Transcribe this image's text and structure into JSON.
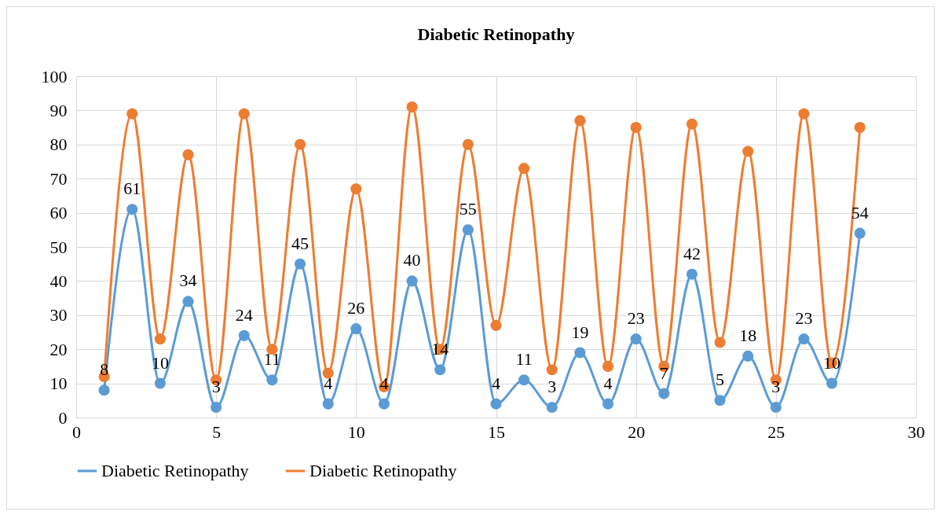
{
  "chart_data": {
    "type": "line",
    "title": "Diabetic Retinopathy",
    "x": [
      1,
      2,
      3,
      4,
      5,
      6,
      7,
      8,
      9,
      10,
      11,
      12,
      13,
      14,
      15,
      16,
      17,
      18,
      19,
      20,
      21,
      22,
      23,
      24,
      25,
      26,
      27,
      28
    ],
    "series": [
      {
        "name": "Diabetic Retinopathy",
        "color": "#5b9bd5",
        "values": [
          8,
          61,
          10,
          34,
          3,
          24,
          11,
          45,
          4,
          26,
          4,
          40,
          14,
          55,
          4,
          11,
          3,
          19,
          4,
          23,
          7,
          42,
          5,
          18,
          3,
          23,
          10,
          54
        ],
        "value_labels": [
          "8",
          "61",
          "10",
          "34",
          "3",
          "24",
          "11",
          "45",
          "4",
          "26",
          "4",
          "40",
          "14",
          "55",
          "4",
          "11",
          "3",
          "19",
          "4",
          "23",
          "7",
          "42",
          "5",
          "18",
          "3",
          "23",
          "10",
          "54"
        ]
      },
      {
        "name": "Diabetic Retinopathy",
        "color": "#ed7d31",
        "values": [
          12,
          89,
          23,
          77,
          11,
          89,
          20,
          80,
          13,
          67,
          9,
          91,
          20,
          80,
          27,
          73,
          14,
          87,
          15,
          85,
          15,
          86,
          22,
          78,
          11,
          89,
          16,
          85
        ]
      }
    ],
    "xlim": [
      0,
      30
    ],
    "xticks": [
      0,
      5,
      10,
      15,
      20,
      25,
      30
    ],
    "ylim": [
      0,
      100
    ],
    "yticks": [
      0,
      10,
      20,
      30,
      40,
      50,
      60,
      70,
      80,
      90,
      100
    ],
    "grid": true,
    "legend": "bottom",
    "marker": "circle",
    "line_style": "solid"
  }
}
